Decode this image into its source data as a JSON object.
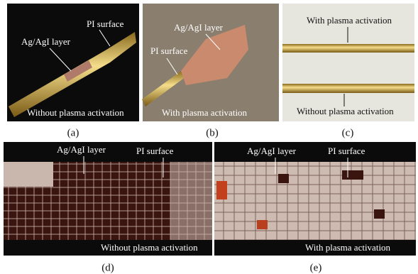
{
  "panels": [
    {
      "label": "(a)",
      "caption": "Without plasma activation",
      "annotations": [
        "PI surface",
        "Ag/AgI layer"
      ]
    },
    {
      "label": "(b)",
      "caption": "With plasma activation",
      "annotations": [
        "Ag/AgI layer",
        "PI surface"
      ]
    },
    {
      "label": "(c)",
      "caption": "Without plasma activation",
      "annotations": [
        "With plasma activation"
      ]
    },
    {
      "label": "(d)",
      "caption": "Without plasma activation",
      "annotations": [
        "Ag/AgI layer",
        "PI surface"
      ]
    },
    {
      "label": "(e)",
      "caption": "With plasma activation",
      "annotations": [
        "Ag/AgI layer",
        "PI surface"
      ]
    }
  ]
}
